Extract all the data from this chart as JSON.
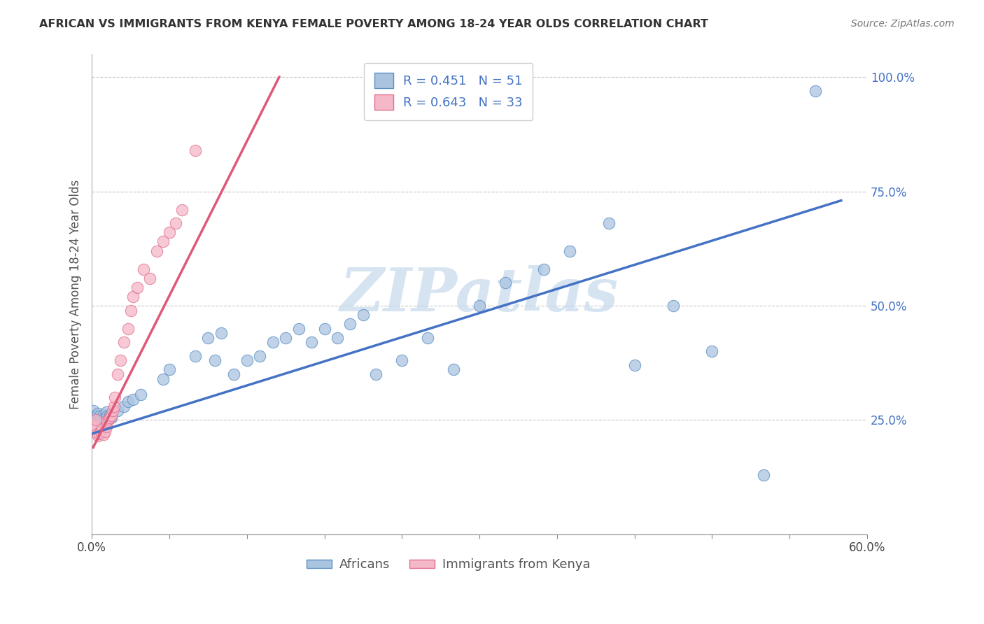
{
  "title": "AFRICAN VS IMMIGRANTS FROM KENYA FEMALE POVERTY AMONG 18-24 YEAR OLDS CORRELATION CHART",
  "source": "Source: ZipAtlas.com",
  "ylabel": "Female Poverty Among 18-24 Year Olds",
  "series1_name": "Africans",
  "series1_color": "#aac4e0",
  "series1_edge_color": "#5b8ec4",
  "series1_line_color": "#4472c4",
  "series1_R": 0.451,
  "series1_N": 51,
  "series2_name": "Immigrants from Kenya",
  "series2_color": "#f5b8c8",
  "series2_edge_color": "#e07090",
  "series2_line_color": "#e05878",
  "series2_R": 0.643,
  "series2_N": 33,
  "legend_R_color": "#4472c4",
  "watermark": "ZIPatlas",
  "watermark_color": "#c5d8ec",
  "background_color": "#ffffff",
  "grid_color": "#c8c8c8",
  "title_color": "#333333",
  "africans_x": [
    0.001,
    0.002,
    0.003,
    0.004,
    0.005,
    0.006,
    0.007,
    0.008,
    0.009,
    0.01,
    0.011,
    0.012,
    0.013,
    0.014,
    0.015,
    0.02,
    0.025,
    0.028,
    0.032,
    0.038,
    0.055,
    0.06,
    0.08,
    0.09,
    0.095,
    0.1,
    0.11,
    0.12,
    0.13,
    0.14,
    0.15,
    0.16,
    0.17,
    0.18,
    0.19,
    0.2,
    0.21,
    0.22,
    0.24,
    0.26,
    0.28,
    0.3,
    0.32,
    0.35,
    0.37,
    0.4,
    0.42,
    0.45,
    0.48,
    0.52,
    0.56
  ],
  "africans_y": [
    0.27,
    0.255,
    0.26,
    0.25,
    0.265,
    0.258,
    0.252,
    0.248,
    0.262,
    0.255,
    0.268,
    0.258,
    0.254,
    0.26,
    0.255,
    0.27,
    0.28,
    0.29,
    0.295,
    0.305,
    0.34,
    0.36,
    0.39,
    0.43,
    0.38,
    0.44,
    0.35,
    0.38,
    0.39,
    0.42,
    0.43,
    0.45,
    0.42,
    0.45,
    0.43,
    0.46,
    0.48,
    0.35,
    0.38,
    0.43,
    0.36,
    0.5,
    0.55,
    0.58,
    0.62,
    0.68,
    0.37,
    0.5,
    0.4,
    0.13,
    0.97
  ],
  "kenya_x": [
    0.001,
    0.002,
    0.003,
    0.004,
    0.005,
    0.006,
    0.007,
    0.008,
    0.009,
    0.01,
    0.011,
    0.012,
    0.013,
    0.014,
    0.015,
    0.016,
    0.017,
    0.018,
    0.02,
    0.022,
    0.025,
    0.028,
    0.03,
    0.032,
    0.035,
    0.04,
    0.045,
    0.05,
    0.055,
    0.06,
    0.065,
    0.07,
    0.08
  ],
  "kenya_y": [
    0.24,
    0.235,
    0.25,
    0.22,
    0.215,
    0.22,
    0.225,
    0.23,
    0.218,
    0.225,
    0.235,
    0.248,
    0.252,
    0.255,
    0.26,
    0.27,
    0.28,
    0.3,
    0.35,
    0.38,
    0.42,
    0.45,
    0.49,
    0.52,
    0.54,
    0.58,
    0.56,
    0.62,
    0.64,
    0.66,
    0.68,
    0.71,
    0.84
  ],
  "blue_line_x": [
    0.0,
    0.58
  ],
  "blue_line_y": [
    0.22,
    0.73
  ],
  "pink_line_x": [
    0.001,
    0.145
  ],
  "pink_line_y": [
    0.19,
    1.0
  ],
  "ytick_vals": [
    0.0,
    0.25,
    0.5,
    0.75,
    1.0
  ],
  "ytick_labels": [
    "",
    "25.0%",
    "50.0%",
    "75.0%",
    "100.0%"
  ],
  "xtick_positions": [
    0.0,
    0.06,
    0.12,
    0.18,
    0.24,
    0.3,
    0.36,
    0.42,
    0.48,
    0.54,
    0.6
  ],
  "xlim": [
    0.0,
    0.6
  ],
  "ylim": [
    0.0,
    1.05
  ]
}
